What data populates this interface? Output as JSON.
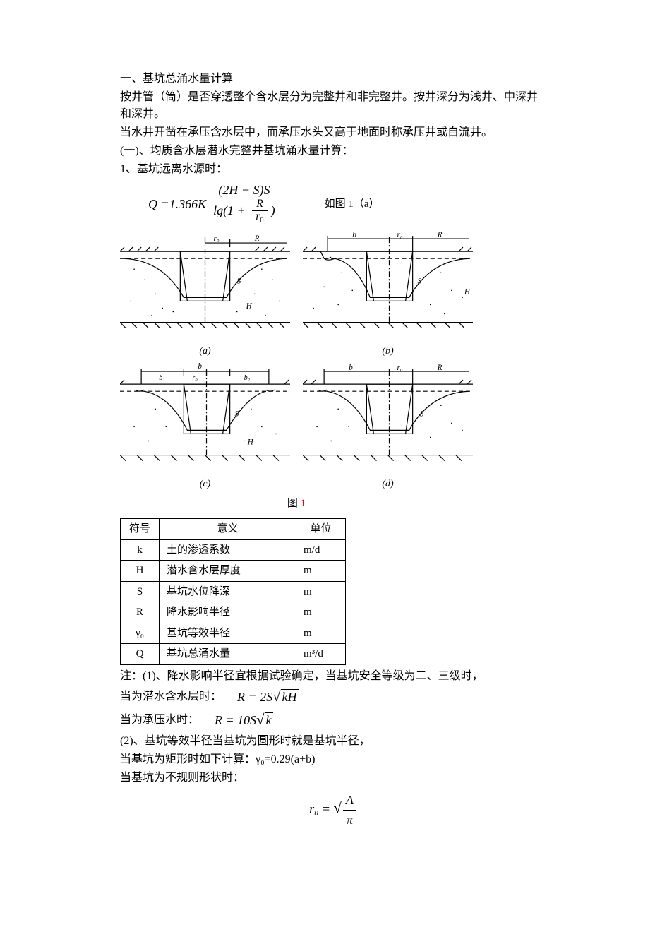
{
  "title": "一、基坑总涌水量计算",
  "intro1": "按井管（筒）是否穿透整个含水层分为完整井和非完整井。按井深分为浅井、中深井和深井。",
  "intro2": "当水井开凿在承压含水层中，而承压水头又高于地面时称承压井或自流井。",
  "section1": "(一)、均质含水层潜水完整井基坑涌水量计算：",
  "case1": "1、基坑远离水源时：",
  "formula1": {
    "lhs": "Q",
    "coef": "1.366",
    "var_k": "K",
    "num": "(2H − S)S",
    "den_label": "lg(1 + ",
    "den_frac_num": "R",
    "den_frac_den": "r",
    "den_frac_sub": "0",
    "note": "如图 1（a）"
  },
  "figures": {
    "labels": [
      "(a)",
      "(b)",
      "(c)",
      "(d)"
    ],
    "caption_prefix": "图 ",
    "caption_number": "1",
    "dim_labels": {
      "r0": "r₀",
      "R": "R",
      "b": "b",
      "b1": "b₁",
      "b2": "b₂",
      "bprime": "b′",
      "H": "H",
      "S": "S"
    },
    "stroke": "#000000",
    "bg": "#ffffff"
  },
  "symbol_table": {
    "headers": [
      "符号",
      "意义",
      "单位"
    ],
    "rows": [
      [
        "k",
        "土的渗透系数",
        "m/d"
      ],
      [
        "H",
        "潜水含水层厚度",
        "m"
      ],
      [
        "S",
        "基坑水位降深",
        "m"
      ],
      [
        "R",
        "降水影响半径",
        "m"
      ],
      [
        "γ₀",
        "基坑等效半径",
        "m"
      ],
      [
        "Q",
        "基坑总涌水量",
        "m³/d"
      ]
    ]
  },
  "notes": {
    "n1": "注：(1)、降水影响半径宜根据试验确定，当基坑安全等级为二、三级时，",
    "n1a": "当为潜水含水层时：",
    "n1a_formula": "R = 2S√(kH)",
    "n1b": "当为承压水时：",
    "n1b_formula": "R = 10S√k",
    "n2": "(2)、基坑等效半径当基坑为圆形时就是基坑半径，",
    "n2a": "当基坑为矩形时如下计算：γ₀=0.29(a+b)",
    "n2b": "当基坑为不规则形状时：",
    "n2b_formula_lhs": "r₀",
    "n2b_formula_num": "A",
    "n2b_formula_den": "π"
  }
}
